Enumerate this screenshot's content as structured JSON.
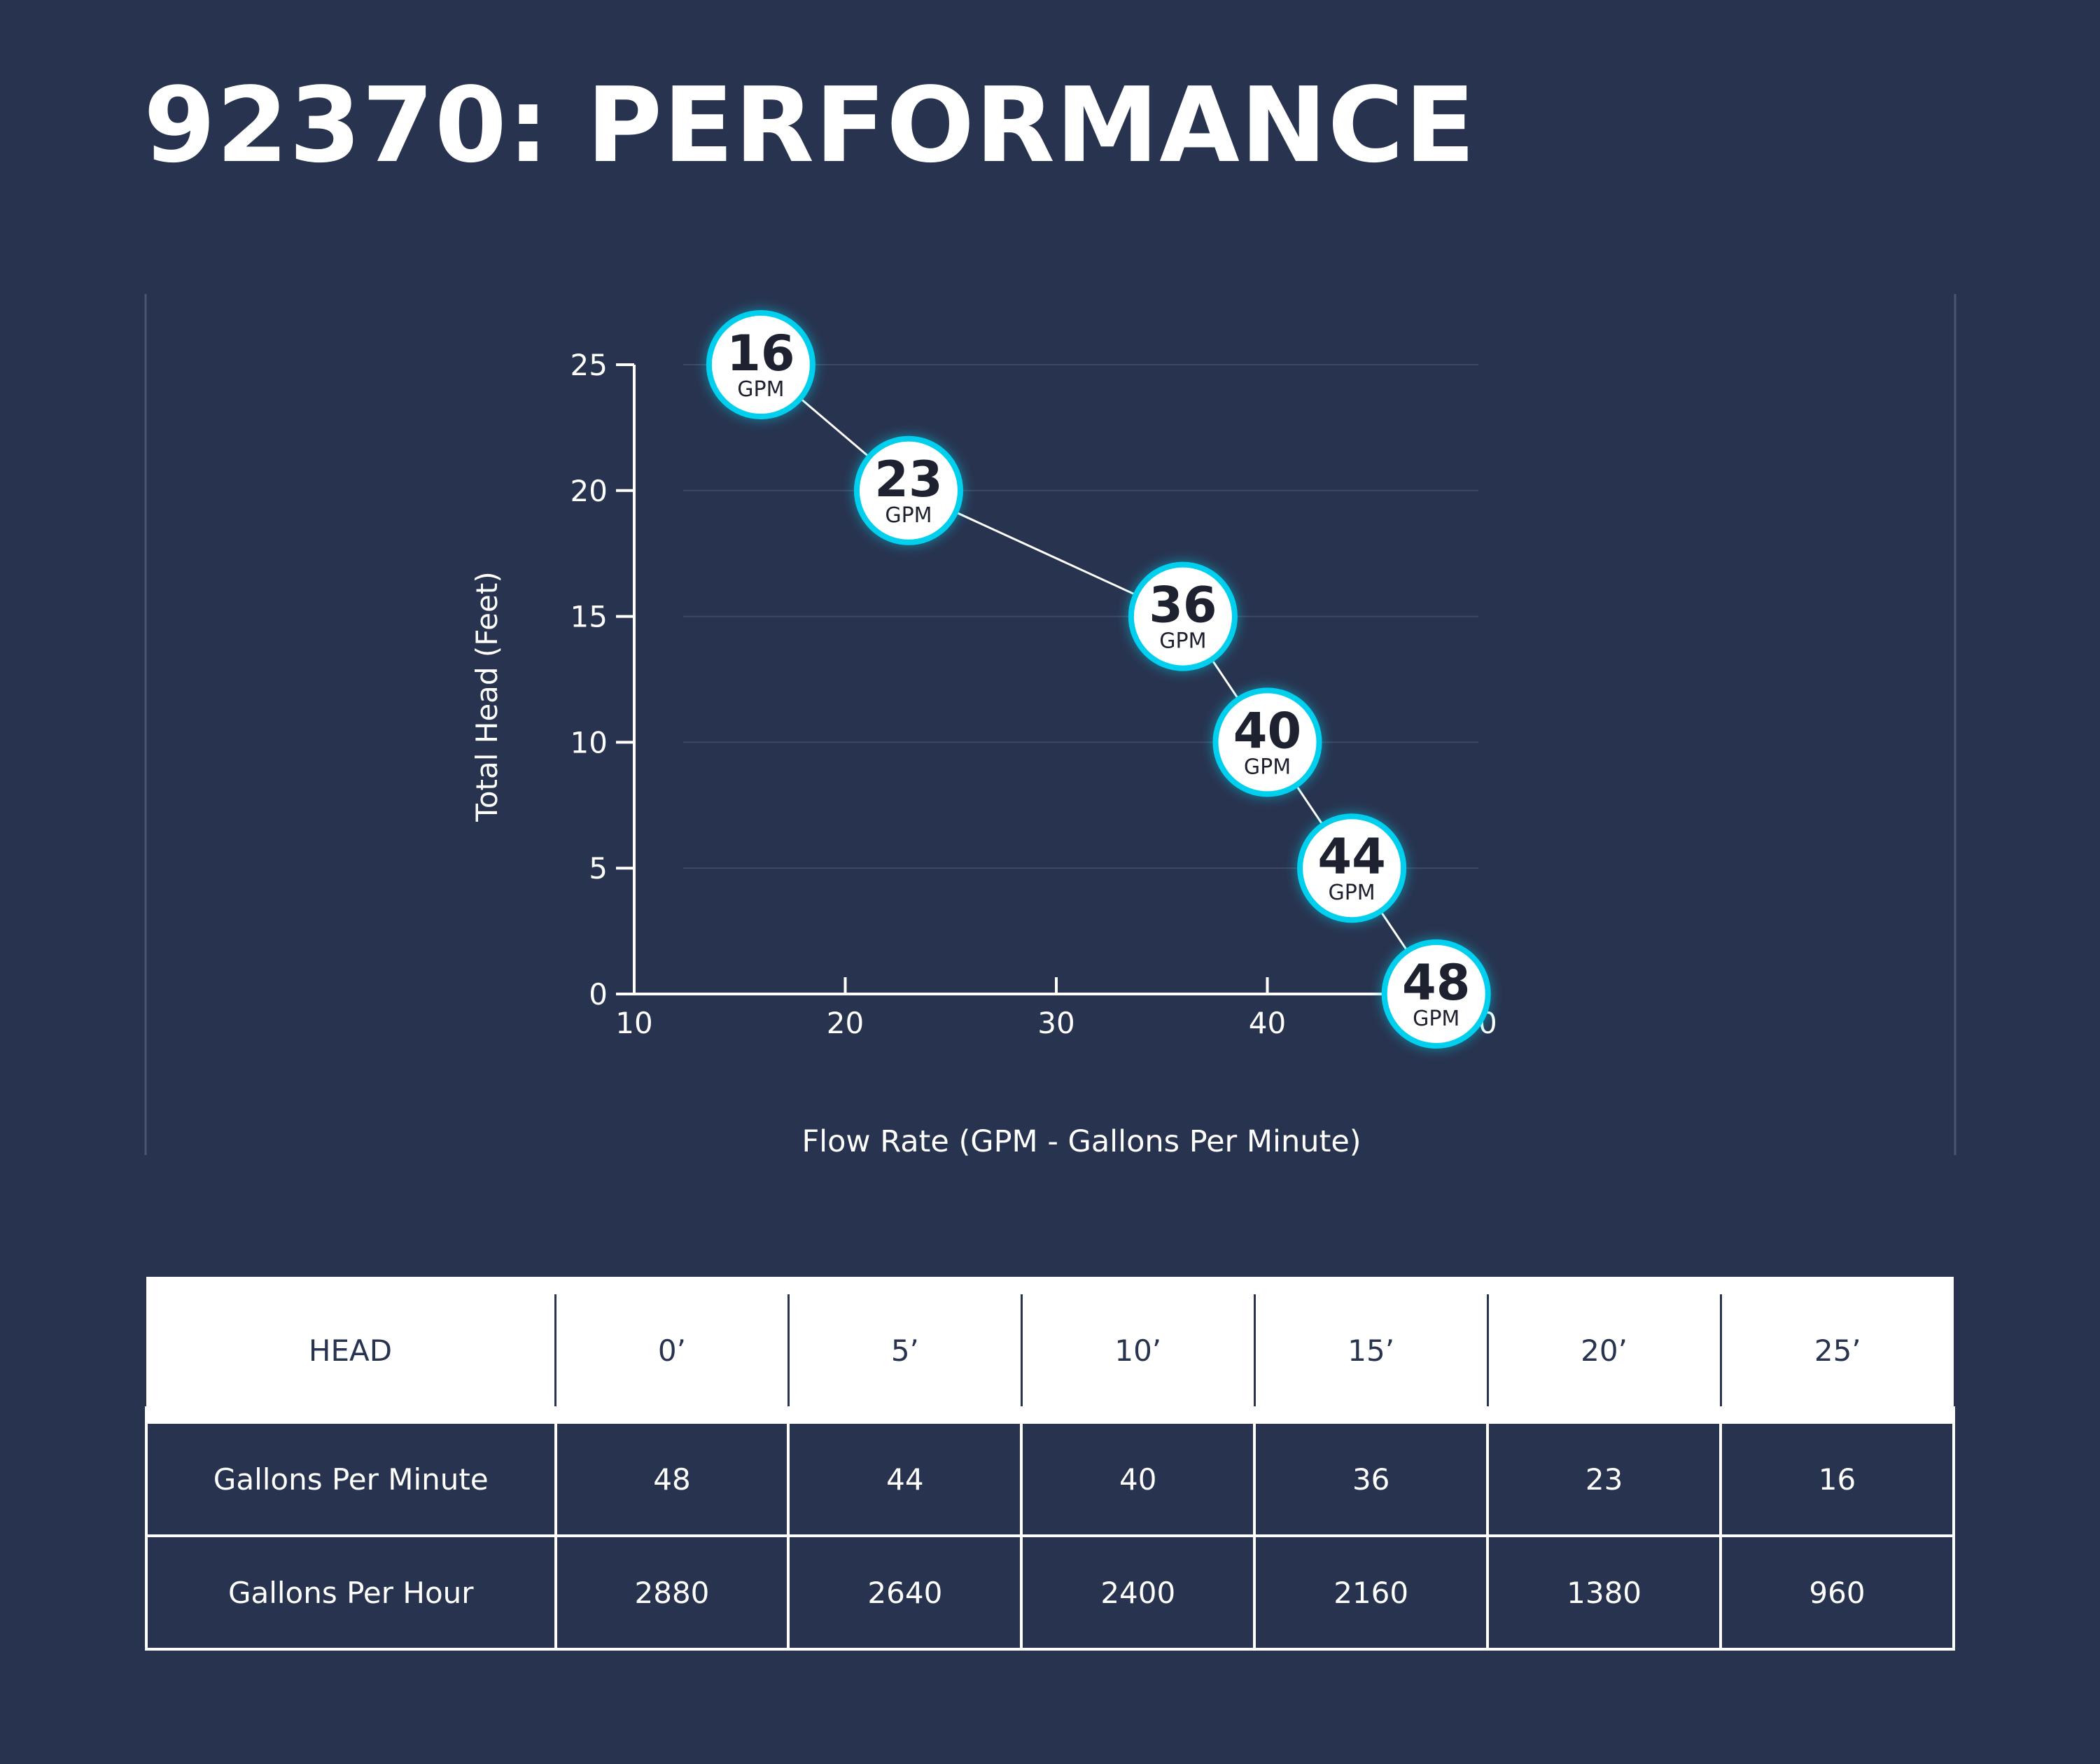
{
  "title": "92370: PERFORMANCE",
  "colors": {
    "background": "#28334f",
    "marker_ring": "#00d0ee",
    "marker_fill": "#ffffff",
    "marker_text": "#1e2230",
    "line": "#ffffff"
  },
  "chart_data": {
    "type": "line",
    "xlabel": "Flow Rate (GPM - Gallons Per Minute)",
    "ylabel": "Total Head (Feet)",
    "xlim": [
      10,
      50
    ],
    "ylim": [
      0,
      25
    ],
    "x_ticks": [
      "10",
      "20",
      "30",
      "40",
      "50"
    ],
    "y_ticks": [
      "0",
      "5",
      "10",
      "15",
      "20",
      "25"
    ],
    "grid": "horizontal",
    "points": [
      {
        "x": 16,
        "y": 25,
        "label": "16",
        "unit": "GPM"
      },
      {
        "x": 23,
        "y": 20,
        "label": "23",
        "unit": "GPM"
      },
      {
        "x": 36,
        "y": 15,
        "label": "36",
        "unit": "GPM"
      },
      {
        "x": 40,
        "y": 10,
        "label": "40",
        "unit": "GPM"
      },
      {
        "x": 44,
        "y": 5,
        "label": "44",
        "unit": "GPM"
      },
      {
        "x": 48,
        "y": 0,
        "label": "48",
        "unit": "GPM"
      }
    ]
  },
  "table": {
    "header": [
      "HEAD",
      "0’",
      "5’",
      "10’",
      "15’",
      "20’",
      "25’"
    ],
    "rows": [
      {
        "label": "Gallons Per Minute",
        "values": [
          "48",
          "44",
          "40",
          "36",
          "23",
          "16"
        ]
      },
      {
        "label": "Gallons Per Hour",
        "values": [
          "2880",
          "2640",
          "2400",
          "2160",
          "1380",
          "960"
        ]
      }
    ]
  }
}
